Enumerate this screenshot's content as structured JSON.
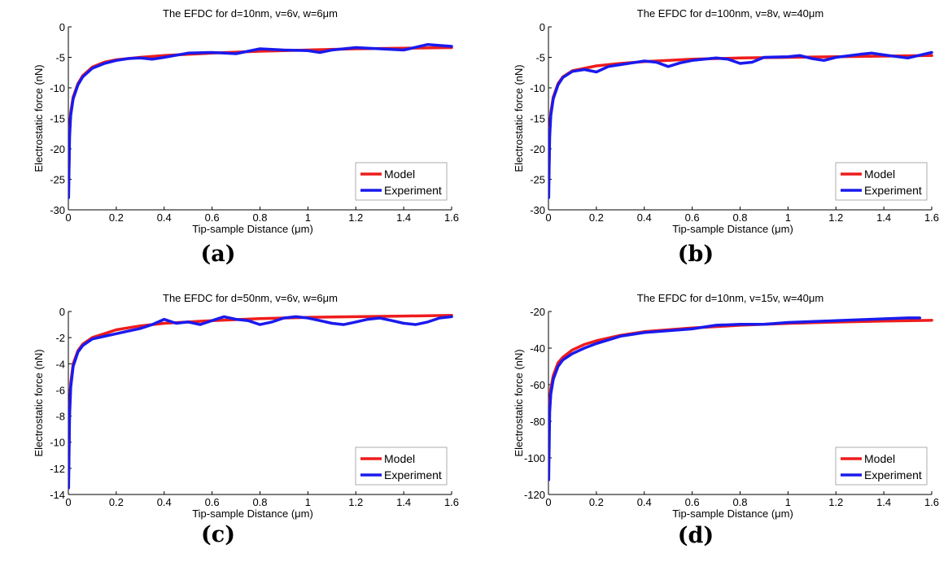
{
  "figure": {
    "legend": {
      "model": "Model",
      "experiment": "Experiment"
    },
    "colors": {
      "model": "#ee1c1c",
      "experiment": "#1a1aee",
      "axis": "#000000"
    }
  },
  "chart_data": [
    {
      "type": "line",
      "caption": "(a)",
      "title": "The  EFDC for d=10nm,  v=6v, w=6μm",
      "xlabel": "Tip-sample Distance (μm)",
      "ylabel": "Electrostatic force (nN)",
      "xlim": [
        0,
        1.6
      ],
      "ylim": [
        -30,
        0
      ],
      "xticks": [
        "0",
        "0.2",
        "0.4",
        "0.6",
        "0.8",
        "1",
        "1.2",
        "1.4",
        "1.6"
      ],
      "yticks": [
        "0",
        "-5",
        "-10",
        "-15",
        "-20",
        "-25",
        "-30"
      ],
      "legend_position": "bottom-right",
      "series": [
        {
          "name": "Model",
          "color": "#ee1c1c",
          "x": [
            0.001,
            0.005,
            0.01,
            0.02,
            0.04,
            0.06,
            0.1,
            0.15,
            0.2,
            0.3,
            0.4,
            0.5,
            0.6,
            0.8,
            1.0,
            1.2,
            1.4,
            1.6
          ],
          "y": [
            -27,
            -17,
            -14,
            -11.5,
            -9.3,
            -8.0,
            -6.6,
            -5.8,
            -5.4,
            -5.0,
            -4.7,
            -4.5,
            -4.3,
            -4.0,
            -3.8,
            -3.6,
            -3.5,
            -3.4
          ]
        },
        {
          "name": "Experiment",
          "color": "#1a1aee",
          "x": [
            0.001,
            0.005,
            0.01,
            0.02,
            0.04,
            0.06,
            0.1,
            0.15,
            0.2,
            0.25,
            0.3,
            0.35,
            0.4,
            0.5,
            0.6,
            0.7,
            0.8,
            0.9,
            1.0,
            1.05,
            1.1,
            1.2,
            1.3,
            1.4,
            1.5,
            1.6
          ],
          "y": [
            -28,
            -18,
            -14.5,
            -11.8,
            -9.5,
            -8.2,
            -6.8,
            -6.0,
            -5.5,
            -5.2,
            -5.1,
            -5.3,
            -5.0,
            -4.3,
            -4.2,
            -4.4,
            -3.6,
            -3.8,
            -3.9,
            -4.2,
            -3.8,
            -3.4,
            -3.6,
            -3.8,
            -2.9,
            -3.2
          ]
        }
      ]
    },
    {
      "type": "line",
      "caption": "(b)",
      "title": "The  EFDC for d=100nm,  v=8v, w=40μm",
      "xlabel": "Tip-sample Distance (μm)",
      "ylabel": "Electrostatic force (nN)",
      "xlim": [
        0,
        1.6
      ],
      "ylim": [
        -30,
        0
      ],
      "xticks": [
        "0",
        "0.2",
        "0.4",
        "0.6",
        "0.8",
        "1",
        "1.2",
        "1.4",
        "1.6"
      ],
      "yticks": [
        "0",
        "-5",
        "-10",
        "-15",
        "-20",
        "-25",
        "-30"
      ],
      "legend_position": "bottom-right",
      "series": [
        {
          "name": "Model",
          "color": "#ee1c1c",
          "x": [
            0.001,
            0.005,
            0.01,
            0.02,
            0.04,
            0.06,
            0.1,
            0.15,
            0.2,
            0.3,
            0.4,
            0.6,
            0.8,
            1.0,
            1.2,
            1.4,
            1.6
          ],
          "y": [
            -26,
            -17,
            -14,
            -11.5,
            -9.3,
            -8.2,
            -7.2,
            -6.8,
            -6.4,
            -6.0,
            -5.7,
            -5.3,
            -5.1,
            -5.0,
            -4.9,
            -4.8,
            -4.7
          ]
        },
        {
          "name": "Experiment",
          "color": "#1a1aee",
          "x": [
            0.001,
            0.005,
            0.01,
            0.02,
            0.04,
            0.06,
            0.1,
            0.15,
            0.2,
            0.25,
            0.3,
            0.35,
            0.4,
            0.45,
            0.5,
            0.55,
            0.6,
            0.7,
            0.75,
            0.8,
            0.85,
            0.9,
            1.0,
            1.05,
            1.1,
            1.15,
            1.2,
            1.3,
            1.35,
            1.4,
            1.5,
            1.6
          ],
          "y": [
            -28,
            -18,
            -14.5,
            -11.8,
            -9.5,
            -8.3,
            -7.3,
            -7.0,
            -7.4,
            -6.5,
            -6.2,
            -5.9,
            -5.6,
            -5.8,
            -6.5,
            -5.9,
            -5.5,
            -5.1,
            -5.3,
            -6.0,
            -5.8,
            -5.0,
            -4.9,
            -4.7,
            -5.2,
            -5.5,
            -5.0,
            -4.5,
            -4.3,
            -4.6,
            -5.1,
            -4.2
          ]
        }
      ]
    },
    {
      "type": "line",
      "caption": "(c)",
      "title": "The  EFDC for d=50nm,  v=6v, w=6μm",
      "xlabel": "Tip-sample Distance (μm)",
      "ylabel": "Electrostatic force (nN)",
      "xlim": [
        0,
        1.6
      ],
      "ylim": [
        -14,
        0
      ],
      "xticks": [
        "0",
        "0.2",
        "0.4",
        "0.6",
        "0.8",
        "1",
        "1.2",
        "1.4",
        "1.6"
      ],
      "yticks": [
        "0",
        "-2",
        "-4",
        "-6",
        "-8",
        "-10",
        "-12",
        "-14"
      ],
      "legend_position": "bottom-right",
      "series": [
        {
          "name": "Model",
          "color": "#ee1c1c",
          "x": [
            0.001,
            0.005,
            0.01,
            0.02,
            0.04,
            0.06,
            0.1,
            0.15,
            0.2,
            0.3,
            0.4,
            0.5,
            0.6,
            0.8,
            1.0,
            1.2,
            1.4,
            1.6
          ],
          "y": [
            -12.5,
            -7.5,
            -5.5,
            -4.0,
            -3.0,
            -2.5,
            -2.0,
            -1.7,
            -1.4,
            -1.1,
            -0.9,
            -0.8,
            -0.7,
            -0.55,
            -0.45,
            -0.4,
            -0.35,
            -0.3
          ]
        },
        {
          "name": "Experiment",
          "color": "#1a1aee",
          "x": [
            0.001,
            0.005,
            0.01,
            0.02,
            0.04,
            0.06,
            0.1,
            0.15,
            0.2,
            0.25,
            0.3,
            0.35,
            0.4,
            0.45,
            0.5,
            0.55,
            0.6,
            0.65,
            0.7,
            0.75,
            0.8,
            0.85,
            0.9,
            0.95,
            1.0,
            1.05,
            1.1,
            1.15,
            1.2,
            1.25,
            1.3,
            1.35,
            1.4,
            1.45,
            1.5,
            1.55,
            1.6
          ],
          "y": [
            -13.5,
            -8,
            -5.8,
            -4.2,
            -3.1,
            -2.6,
            -2.1,
            -1.9,
            -1.7,
            -1.5,
            -1.3,
            -1.0,
            -0.6,
            -0.9,
            -0.8,
            -1.0,
            -0.7,
            -0.4,
            -0.6,
            -0.7,
            -1.0,
            -0.8,
            -0.5,
            -0.4,
            -0.5,
            -0.7,
            -0.9,
            -1.0,
            -0.8,
            -0.6,
            -0.5,
            -0.7,
            -0.9,
            -1.0,
            -0.8,
            -0.5,
            -0.4
          ]
        }
      ]
    },
    {
      "type": "line",
      "caption": "(d)",
      "title": "The  EFDC for d=10nm,  v=15v, w=40μm",
      "xlabel": "Tip-sample Distance (μm)",
      "ylabel": "Electrostatic force (nN)",
      "xlim": [
        0,
        1.6
      ],
      "ylim": [
        -120,
        -20
      ],
      "xticks": [
        "0",
        "0.2",
        "0.4",
        "0.6",
        "0.8",
        "1",
        "1.2",
        "1.4",
        "1.6"
      ],
      "yticks": [
        "-20",
        "-40",
        "-60",
        "-80",
        "-100",
        "-120"
      ],
      "legend_position": "bottom-right",
      "series": [
        {
          "name": "Model",
          "color": "#ee1c1c",
          "x": [
            0.001,
            0.005,
            0.01,
            0.02,
            0.04,
            0.06,
            0.1,
            0.15,
            0.2,
            0.3,
            0.4,
            0.5,
            0.6,
            0.8,
            1.0,
            1.2,
            1.4,
            1.6
          ],
          "y": [
            -95,
            -70,
            -62,
            -55,
            -48,
            -45,
            -41,
            -38,
            -36,
            -33,
            -31,
            -30,
            -29,
            -27.5,
            -26.5,
            -25.8,
            -25.2,
            -24.8
          ]
        },
        {
          "name": "Experiment",
          "color": "#1a1aee",
          "x": [
            0.001,
            0.005,
            0.01,
            0.02,
            0.04,
            0.06,
            0.1,
            0.15,
            0.2,
            0.25,
            0.3,
            0.4,
            0.5,
            0.6,
            0.7,
            0.8,
            0.9,
            1.0,
            1.1,
            1.2,
            1.3,
            1.4,
            1.5,
            1.55
          ],
          "y": [
            -112,
            -75,
            -65,
            -57,
            -50,
            -46.5,
            -43,
            -40,
            -37.5,
            -35.5,
            -33.5,
            -31.5,
            -30.5,
            -29.5,
            -27.5,
            -27.0,
            -27.0,
            -26.0,
            -25.5,
            -25.0,
            -24.5,
            -24.0,
            -23.5,
            -23.5
          ]
        }
      ]
    }
  ]
}
